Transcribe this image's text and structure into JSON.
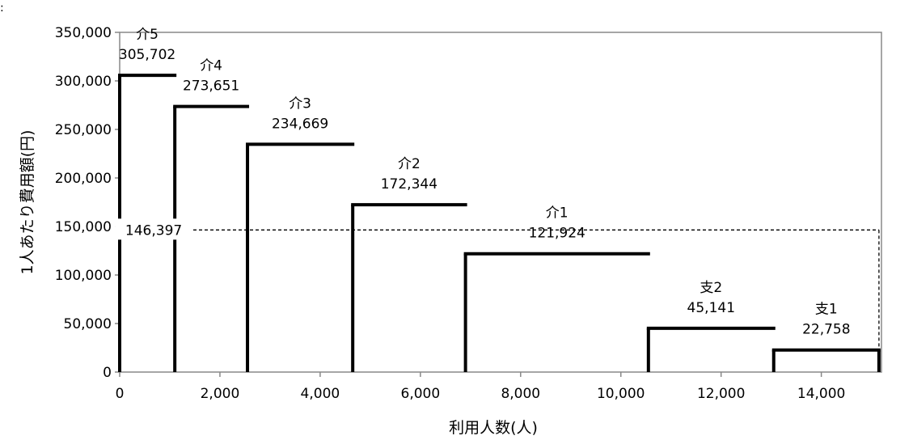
{
  "corner_mark": ":",
  "chart_data": {
    "type": "step",
    "xlabel": "利用人数(人)",
    "ylabel": "1人あたり費用額(円)",
    "xlim": [
      0,
      15200
    ],
    "ylim": [
      0,
      350000
    ],
    "x_ticks": [
      "0",
      "2,000",
      "4,000",
      "6,000",
      "8,000",
      "10,000",
      "12,000",
      "14,000"
    ],
    "x_tick_values": [
      0,
      2000,
      4000,
      6000,
      8000,
      10000,
      12000,
      14000
    ],
    "y_ticks": [
      "0",
      "50,000",
      "100,000",
      "150,000",
      "200,000",
      "250,000",
      "300,000",
      "350,000"
    ],
    "y_tick_values": [
      0,
      50000,
      100000,
      150000,
      200000,
      250000,
      300000,
      350000
    ],
    "grid": false,
    "segments": [
      {
        "category": "介5",
        "value_label": "305,702",
        "x_start": 0,
        "x_end": 1100,
        "value": 305702
      },
      {
        "category": "介4",
        "value_label": "273,651",
        "x_start": 1100,
        "x_end": 2550,
        "value": 273651
      },
      {
        "category": "介3",
        "value_label": "234,669",
        "x_start": 2550,
        "x_end": 4650,
        "value": 234669
      },
      {
        "category": "介2",
        "value_label": "172,344",
        "x_start": 4650,
        "x_end": 6900,
        "value": 172344
      },
      {
        "category": "介1",
        "value_label": "121,924",
        "x_start": 6900,
        "x_end": 10550,
        "value": 121924
      },
      {
        "category": "支2",
        "value_label": "45,141",
        "x_start": 10550,
        "x_end": 13050,
        "value": 45141
      },
      {
        "category": "支1",
        "value_label": "22,758",
        "x_start": 13050,
        "x_end": 15150,
        "value": 22758
      }
    ],
    "average": {
      "value": 146397,
      "label": "146,397",
      "style": "dashed"
    }
  }
}
